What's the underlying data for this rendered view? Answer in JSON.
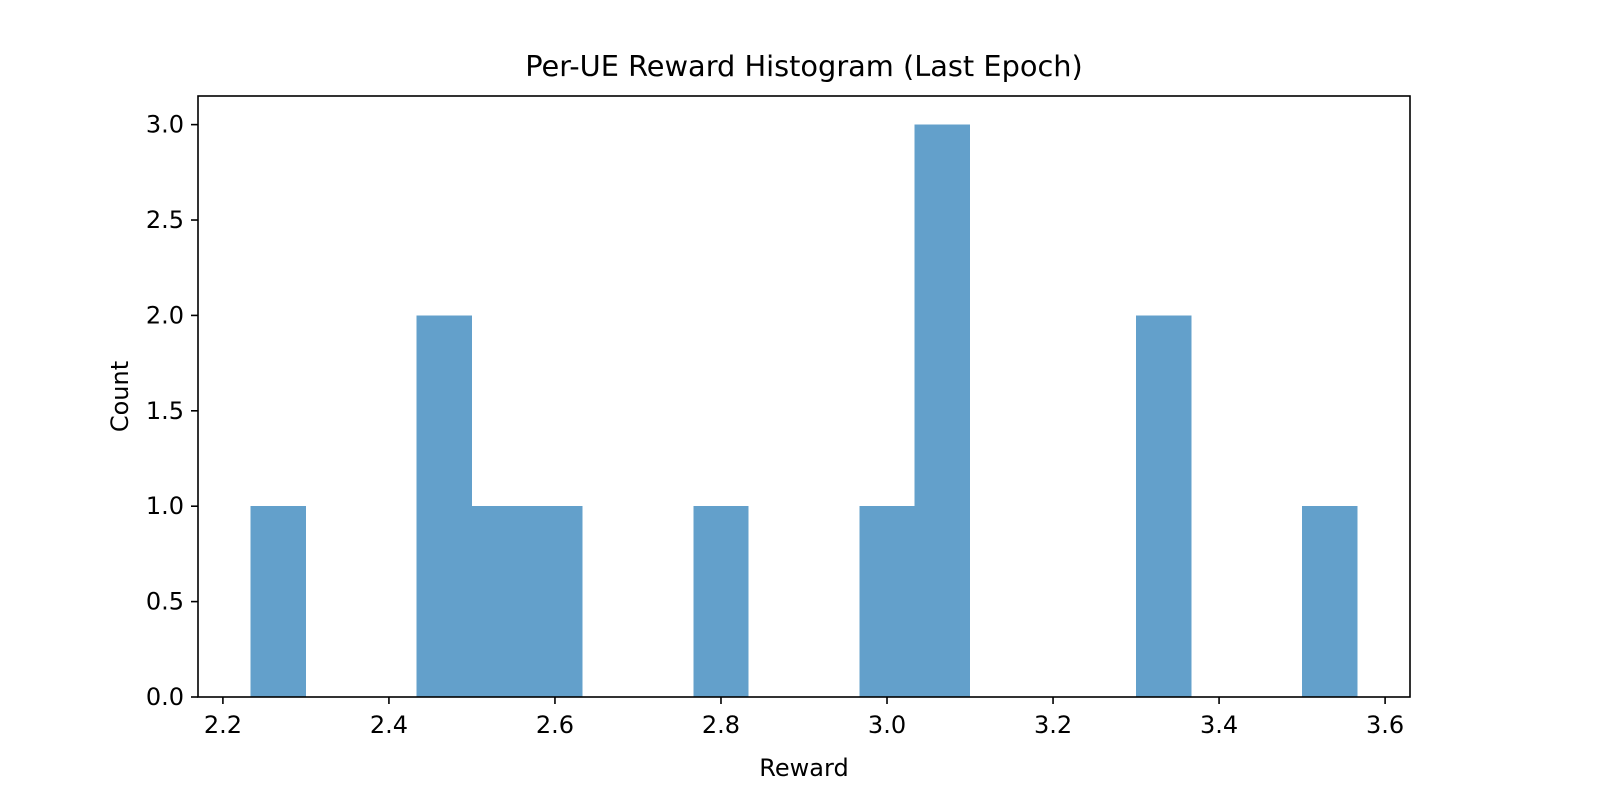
{
  "chart_data": {
    "type": "bar",
    "title": "Per-UE Reward Histogram (Last Epoch)",
    "xlabel": "Reward",
    "ylabel": "Count",
    "xlim": [
      2.17,
      3.63
    ],
    "ylim": [
      0,
      3.15
    ],
    "xticks": [
      2.2,
      2.4,
      2.6,
      2.8,
      3.0,
      3.2,
      3.4,
      3.6
    ],
    "xtick_labels": [
      "2.2",
      "2.4",
      "2.6",
      "2.8",
      "3.0",
      "3.2",
      "3.4",
      "3.6"
    ],
    "yticks": [
      0,
      0.5,
      1.0,
      1.5,
      2.0,
      2.5,
      3.0
    ],
    "ytick_labels": [
      "0.0",
      "0.5",
      "1.0",
      "1.5",
      "2.0",
      "2.5",
      "3.0"
    ],
    "grid": false,
    "bar_color": "#63a0cb",
    "bins": [
      {
        "x0": 2.233,
        "x1": 2.3,
        "count": 1
      },
      {
        "x0": 2.433,
        "x1": 2.5,
        "count": 2
      },
      {
        "x0": 2.5,
        "x1": 2.567,
        "count": 1
      },
      {
        "x0": 2.567,
        "x1": 2.633,
        "count": 1
      },
      {
        "x0": 2.767,
        "x1": 2.833,
        "count": 1
      },
      {
        "x0": 2.967,
        "x1": 3.033,
        "count": 1
      },
      {
        "x0": 3.033,
        "x1": 3.1,
        "count": 3
      },
      {
        "x0": 3.3,
        "x1": 3.367,
        "count": 2
      },
      {
        "x0": 3.5,
        "x1": 3.567,
        "count": 1
      }
    ]
  }
}
